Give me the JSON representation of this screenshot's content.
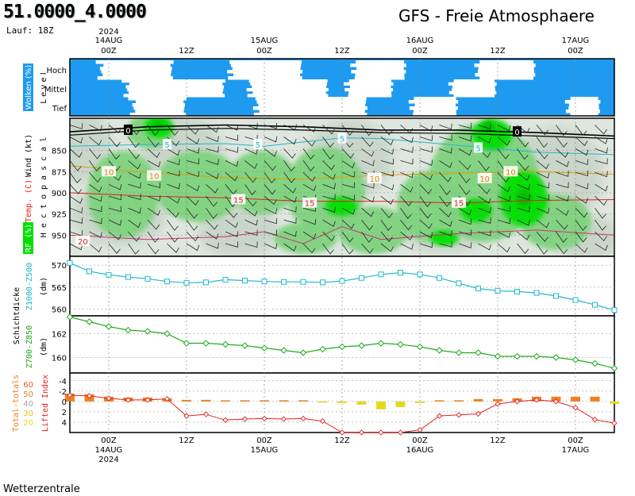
{
  "header": {
    "location": "51.0000_4.0000",
    "run": "Lauf: 18Z",
    "model_title": "GFS - Freie Atmosphaere"
  },
  "footer": {
    "source": "Wetterzentrale"
  },
  "colors": {
    "cloud_blue": "#1e9bf0",
    "rh_light": "#c9d6c9",
    "rh_mid": "#7fd37f",
    "rh_high": "#00e000",
    "rh_max": "#00c000",
    "z500_line": "#22b8c8",
    "z850_line": "#22aa22",
    "lifted": "#e02020",
    "totals_orange": "#f08020",
    "totals_yellow": "#e6d820",
    "axis_red": "#e02020",
    "axis_cyan": "#22b8c8",
    "axis_green": "#22aa22"
  },
  "time_axis": {
    "top_year": "2024",
    "bottom_year": "2024",
    "ticks": [
      {
        "t": 0,
        "label": "00Z",
        "date": "14AUG"
      },
      {
        "t": 12,
        "label": "12Z",
        "date": ""
      },
      {
        "t": 24,
        "label": "00Z",
        "date": "15AUG"
      },
      {
        "t": 36,
        "label": "12Z",
        "date": ""
      },
      {
        "t": 48,
        "label": "00Z",
        "date": "16AUG"
      },
      {
        "t": 60,
        "label": "12Z",
        "date": ""
      },
      {
        "t": 72,
        "label": "00Z",
        "date": "17AUG"
      }
    ],
    "range": [
      -6,
      78
    ]
  },
  "panels": {
    "clouds": {
      "axis_label_left": "Wolken (%)",
      "axis_label_right": "Level",
      "levels": [
        "Hoch",
        "Mittel",
        "Tief"
      ]
    },
    "free_atmosphere": {
      "axis_label_rh": "RF (%)",
      "axis_label_temp": "Temp. (C)",
      "axis_label_wind": "Wind (kt)",
      "axis_label_hpa": "Hectopascal",
      "pressure_ticks": [
        "850",
        "875",
        "900",
        "925",
        "950"
      ],
      "temp_labels": [
        {
          "t": 3,
          "p": 826,
          "text": "0",
          "color": "#000"
        },
        {
          "t": 63,
          "p": 828,
          "text": "0",
          "color": "#000"
        },
        {
          "t": 9,
          "p": 843,
          "text": "5",
          "color": "#22b8c8"
        },
        {
          "t": 23,
          "p": 843,
          "text": "5",
          "color": "#22b8c8"
        },
        {
          "t": 36,
          "p": 836,
          "text": "5",
          "color": "#22b8c8"
        },
        {
          "t": 57,
          "p": 847,
          "text": "5",
          "color": "#22b8c8"
        },
        {
          "t": 0,
          "p": 875,
          "text": "10",
          "color": "#e08000"
        },
        {
          "t": 7,
          "p": 880,
          "text": "10",
          "color": "#e08000"
        },
        {
          "t": 62,
          "p": 875,
          "text": "10",
          "color": "#e08000"
        },
        {
          "t": 41,
          "p": 883,
          "text": "10",
          "color": "#e08000"
        },
        {
          "t": 58,
          "p": 883,
          "text": "10",
          "color": "#e08000"
        },
        {
          "t": 20,
          "p": 908,
          "text": "15",
          "color": "#e02020"
        },
        {
          "t": 31,
          "p": 912,
          "text": "15",
          "color": "#e02020"
        },
        {
          "t": 54,
          "p": 912,
          "text": "15",
          "color": "#e02020"
        },
        {
          "t": -4,
          "p": 957,
          "text": "20",
          "color": "#e02020"
        }
      ]
    },
    "thickness_upper": {
      "axis_label": "Z1000-Z500",
      "unit": "(dm)",
      "ticks": [
        "570",
        "565",
        "560"
      ],
      "ylim": [
        558.5,
        572
      ]
    },
    "thickness_lower": {
      "axis_label": "Z700-Z850",
      "unit": "(dm)",
      "ticks": [
        "162",
        "160"
      ],
      "ylim": [
        158.7,
        163.5
      ]
    },
    "thickness_group_label": "Schichtdicke",
    "indices": {
      "axis_label_totals": "Total-totals",
      "axis_label_lifted": "Lifted Index",
      "totals_ticks": [
        "60",
        "50",
        "40",
        "30",
        "20"
      ],
      "lifted_ticks": [
        "-4",
        "-2",
        "0",
        "2",
        "4"
      ],
      "lifted_ylim": [
        -5.5,
        6
      ]
    }
  },
  "chart_data": [
    {
      "type": "heatmap",
      "title": "Wolken (%)",
      "levels": [
        "Hoch",
        "Mittel",
        "Tief"
      ],
      "clear_gaps": {
        "Hoch": [
          [
            -2,
            10
          ],
          [
            18,
            30
          ],
          [
            37,
            46
          ],
          [
            56,
            66
          ]
        ],
        "Mittel": [
          [
            2,
            18
          ],
          [
            21,
            34
          ],
          [
            36,
            44
          ],
          [
            52,
            60
          ]
        ],
        "Tief": [
          [
            3,
            12
          ],
          [
            22,
            40
          ],
          [
            46,
            54
          ],
          [
            70,
            76
          ]
        ]
      }
    },
    {
      "type": "line",
      "title": "Z1000-Z500 (dm)",
      "x": [
        -6,
        -3,
        0,
        3,
        6,
        9,
        12,
        15,
        18,
        21,
        24,
        27,
        30,
        33,
        36,
        39,
        42,
        45,
        48,
        51,
        54,
        57,
        60,
        63,
        66,
        69,
        72,
        75,
        78
      ],
      "values": [
        570.5,
        568.6,
        567.8,
        567.3,
        566.9,
        566.3,
        566.0,
        566.1,
        566.7,
        566.5,
        566.3,
        566.2,
        566.2,
        566.1,
        566.4,
        567.1,
        567.9,
        568.3,
        567.9,
        567.1,
        565.9,
        564.7,
        564.2,
        564.0,
        563.7,
        563.0,
        562.1,
        561.0,
        559.8
      ]
    },
    {
      "type": "line",
      "title": "Z700-Z850 (dm)",
      "x": [
        -6,
        -3,
        0,
        3,
        6,
        9,
        12,
        15,
        18,
        21,
        24,
        27,
        30,
        33,
        36,
        39,
        42,
        45,
        48,
        51,
        54,
        57,
        60,
        63,
        66,
        69,
        72,
        75,
        78
      ],
      "values": [
        163.4,
        163.0,
        162.6,
        162.3,
        162.2,
        162.0,
        161.2,
        161.2,
        161.1,
        161.0,
        160.8,
        160.6,
        160.4,
        160.7,
        160.9,
        161.0,
        161.2,
        161.1,
        160.9,
        160.6,
        160.4,
        160.4,
        160.1,
        160.1,
        160.1,
        160.0,
        159.8,
        159.5,
        159.1
      ]
    },
    {
      "type": "bar",
      "title": "Total-totals",
      "x": [
        -6,
        -3,
        0,
        3,
        6,
        9,
        12,
        15,
        18,
        21,
        24,
        27,
        30,
        33,
        36,
        39,
        42,
        45,
        48,
        51,
        54,
        57,
        60,
        63,
        66,
        69,
        72,
        75,
        78
      ],
      "values": [
        50,
        49,
        46,
        45,
        45,
        44,
        42,
        42,
        41,
        40,
        40,
        40,
        40,
        39,
        38,
        36,
        30,
        33,
        38,
        40,
        40,
        43,
        43,
        44,
        46,
        46,
        46,
        46,
        37
      ],
      "baseline": 40
    },
    {
      "type": "line",
      "title": "Lifted Index",
      "x": [
        -6,
        -3,
        0,
        3,
        6,
        9,
        12,
        15,
        18,
        21,
        24,
        27,
        30,
        33,
        36,
        39,
        42,
        45,
        48,
        51,
        54,
        57,
        60,
        63,
        66,
        69,
        72,
        75,
        78
      ],
      "values": [
        -1.2,
        -1.1,
        -0.6,
        -0.3,
        -0.3,
        -0.5,
        2.8,
        2.5,
        3.6,
        3.4,
        3.3,
        3.4,
        3.3,
        3.8,
        6.0,
        6.0,
        6.0,
        6.0,
        5.5,
        2.8,
        2.6,
        2.4,
        0.5,
        0.0,
        -0.3,
        0.0,
        1.2,
        3.5,
        4.2
      ]
    }
  ]
}
